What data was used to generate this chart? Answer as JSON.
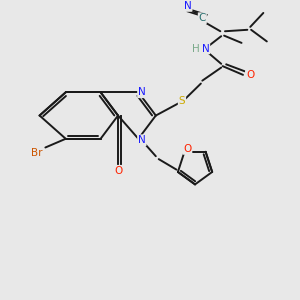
{
  "bg_color": "#e8e8e8",
  "bond_color": "#1a1a1a",
  "bond_width": 1.4,
  "atom_colors": {
    "N": "#1a1aff",
    "O": "#ff2200",
    "S": "#ccaa00",
    "Br": "#cc5500",
    "C_label": "#2a7070",
    "H_label": "#7aaa8a"
  },
  "font_size_atom": 7.5
}
